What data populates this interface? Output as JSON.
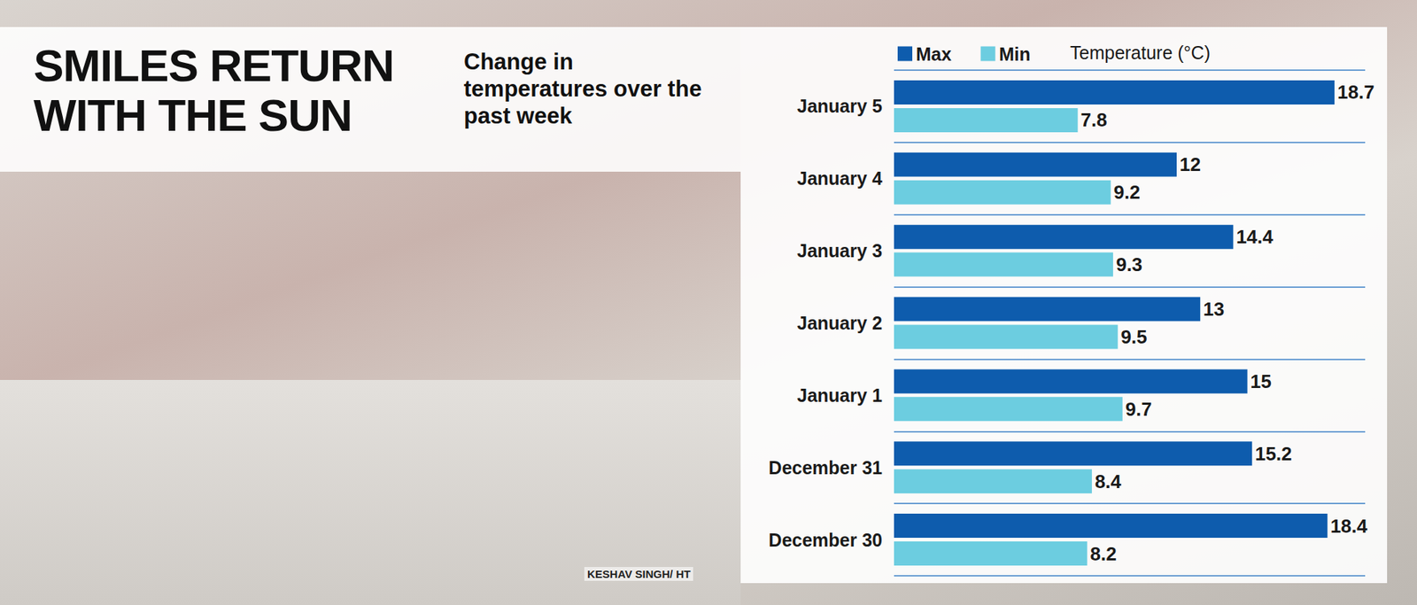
{
  "chart_data": {
    "type": "bar",
    "orientation": "horizontal",
    "title": "SMILES RETURN WITH THE SUN",
    "subtitle": "Change in temperatures over the past week",
    "annotations": [
      "KESHAV SINGH/ HT"
    ],
    "xlabel": "Temperature (°C)",
    "categories": [
      "January 5",
      "January 4",
      "January 3",
      "January 2",
      "January 1",
      "December 31",
      "December 30"
    ],
    "series": [
      {
        "name": "Max",
        "color": "#0e5cad",
        "values": [
          18.7,
          12,
          14.4,
          13,
          15,
          15.2,
          18.4
        ]
      },
      {
        "name": "Min",
        "color": "#6ccde0",
        "values": [
          7.8,
          9.2,
          9.3,
          9.5,
          9.7,
          8.4,
          8.2
        ]
      }
    ],
    "xlim": [
      0,
      20
    ],
    "xticks": [
      0,
      20
    ],
    "grid": true,
    "legend": "top-left",
    "data_labels": true,
    "tick_labels": "y"
  }
}
